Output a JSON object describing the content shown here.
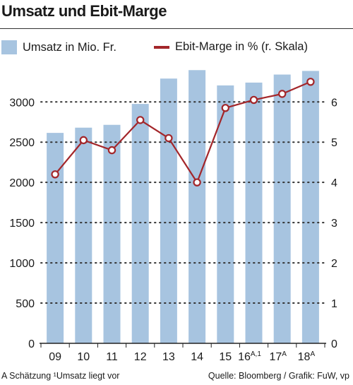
{
  "chart_data": {
    "type": "bar",
    "title": "Umsatz und Ebit-Marge",
    "categories": [
      "09",
      "10",
      "11",
      "12",
      "13",
      "14",
      "15",
      "16",
      "17",
      "18"
    ],
    "category_superscripts": [
      "",
      "",
      "",
      "",
      "",
      "",
      "",
      "A,1",
      "A",
      "A"
    ],
    "series": [
      {
        "name": "Umsatz in Mio. Fr.",
        "type": "bar",
        "axis": "left",
        "values": [
          2615,
          2680,
          2715,
          2975,
          3290,
          3395,
          3205,
          3240,
          3340,
          3385
        ]
      },
      {
        "name": "Ebit-Marge in % (r. Skala)",
        "type": "line",
        "axis": "right",
        "values": [
          4.2,
          5.05,
          4.8,
          5.55,
          5.1,
          4.0,
          5.85,
          6.05,
          6.2,
          6.5
        ]
      }
    ],
    "y_left": {
      "ticks": [
        0,
        500,
        1000,
        1500,
        2000,
        2500,
        3000
      ],
      "ylim": [
        0,
        3450
      ]
    },
    "y_right": {
      "ticks": [
        0,
        1,
        2,
        3,
        4,
        5,
        6
      ],
      "ylim": [
        0,
        6.9
      ]
    },
    "grid": "dotted",
    "legend_position": "top",
    "colors": {
      "bars": "#a7c4e0",
      "line": "#a3262a",
      "marker_fill": "#ffffff"
    }
  },
  "footnote": "A Schätzung ¹Umsatz liegt vor",
  "source": "Quelle: Bloomberg / Grafik: FuW, vp"
}
